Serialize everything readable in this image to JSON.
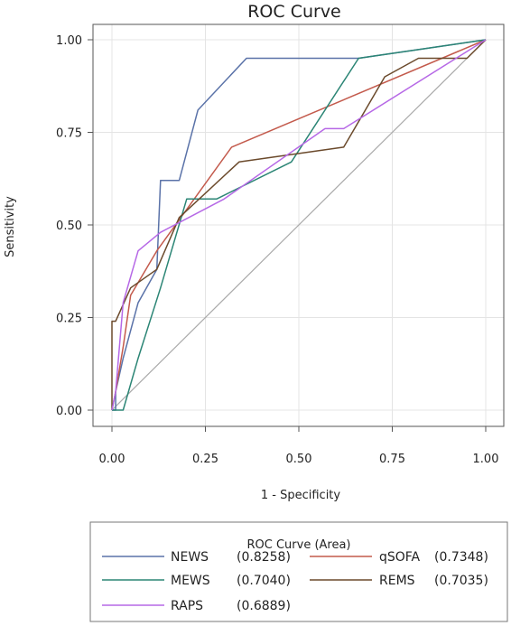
{
  "chart_data": {
    "type": "line",
    "title": "ROC Curve",
    "xlabel": "1 - Specificity",
    "ylabel": "Sensitivity",
    "xlim": [
      0,
      1
    ],
    "ylim": [
      0,
      1
    ],
    "xticks": [
      "0.00",
      "0.25",
      "0.50",
      "0.75",
      "1.00"
    ],
    "yticks": [
      "0.00",
      "0.25",
      "0.50",
      "0.75",
      "1.00"
    ],
    "grid": true,
    "legend_title": "ROC Curve (Area)",
    "legend_placement": "bottom",
    "reference_line": {
      "x": [
        0,
        1
      ],
      "y": [
        0,
        1
      ],
      "color": "#aaaaaa"
    },
    "series": [
      {
        "name": "NEWS",
        "area_label": "(0.8258)",
        "color": "#5a72a8",
        "x": [
          0,
          0.01,
          0.01,
          0.03,
          0.07,
          0.12,
          0.13,
          0.18,
          0.23,
          0.36,
          0.66,
          1.0
        ],
        "y": [
          0,
          0,
          0.05,
          0.14,
          0.29,
          0.38,
          0.62,
          0.62,
          0.81,
          0.95,
          0.95,
          1.0
        ]
      },
      {
        "name": "qSOFA",
        "area_label": "(0.7348)",
        "color": "#c35a4c",
        "x": [
          0,
          0.01,
          0.03,
          0.05,
          0.12,
          0.22,
          0.32,
          1.0
        ],
        "y": [
          0,
          0.05,
          0.17,
          0.31,
          0.43,
          0.57,
          0.71,
          1.0
        ]
      },
      {
        "name": "MEWS",
        "area_label": "(0.7040)",
        "color": "#2b8575",
        "x": [
          0,
          0.03,
          0.07,
          0.13,
          0.2,
          0.28,
          0.48,
          0.66,
          1.0
        ],
        "y": [
          0,
          0,
          0.14,
          0.33,
          0.57,
          0.57,
          0.67,
          0.95,
          1.0
        ]
      },
      {
        "name": "REMS",
        "area_label": "(0.7035)",
        "color": "#6b4a2c",
        "x": [
          0,
          0.0,
          0.01,
          0.05,
          0.12,
          0.18,
          0.34,
          0.62,
          0.73,
          0.82,
          0.95,
          1.0
        ],
        "y": [
          0,
          0.24,
          0.24,
          0.33,
          0.38,
          0.52,
          0.67,
          0.71,
          0.9,
          0.95,
          0.95,
          1.0
        ]
      },
      {
        "name": "RAPS",
        "area_label": "(0.6889)",
        "color": "#b668e6",
        "x": [
          0,
          0.01,
          0.03,
          0.07,
          0.13,
          0.3,
          0.57,
          0.62,
          1.0
        ],
        "y": [
          0,
          0.05,
          0.29,
          0.43,
          0.48,
          0.57,
          0.76,
          0.76,
          1.0
        ]
      }
    ]
  }
}
